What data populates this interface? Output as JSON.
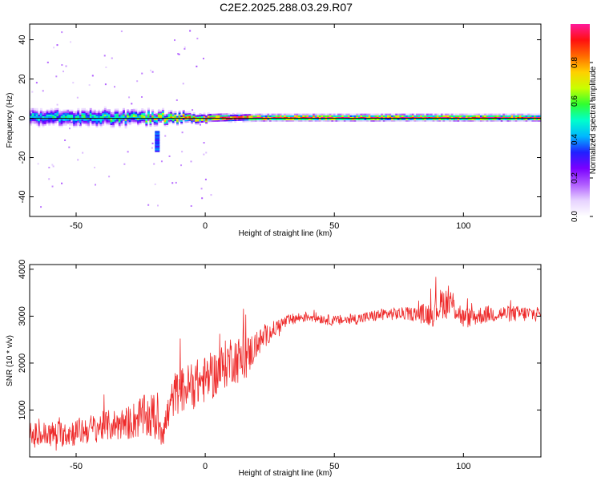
{
  "title": "C2E2.2025.288.03.29.R07",
  "chart_data": [
    {
      "type": "heatmap",
      "title": "C2E2.2025.288.03.29.R07",
      "xlabel": "Height of straight line (km)",
      "ylabel": "Frequency (Hz)",
      "xlim": [
        -68,
        130
      ],
      "ylim": [
        -50,
        48
      ],
      "xticks": [
        -50,
        0,
        50,
        100
      ],
      "yticks": [
        -40,
        -20,
        0,
        20,
        40
      ],
      "xtick_labels": [
        "-50",
        "0",
        "50",
        "100"
      ],
      "ytick_labels": [
        "-40",
        "-20",
        "0",
        "20",
        "40"
      ],
      "centerline_hz": 0,
      "colorbar": {
        "label": "Normalized spectral amplitude",
        "range": [
          0,
          1
        ],
        "ticks": [
          0.0,
          0.2,
          0.4,
          0.6,
          0.8
        ],
        "tick_labels": [
          "0.0",
          "0.2",
          "0.4",
          "0.6",
          "0.8"
        ],
        "colormap": [
          "#ffffff",
          "#e6d2ff",
          "#b05cff",
          "#7a00ff",
          "#2020ff",
          "#00b8ff",
          "#00ffcc",
          "#30ff30",
          "#c8ff00",
          "#ffd000",
          "#ff6a00",
          "#ff1010",
          "#ff1a9a"
        ]
      },
      "features": {
        "band_halfwidth_hz": {
          "x": [
            -68,
            -40,
            -20,
            0,
            20,
            130
          ],
          "values": [
            5,
            5,
            4,
            2.5,
            2,
            2
          ]
        },
        "core_amplitude": {
          "x": [
            -68,
            -30,
            -10,
            5,
            20,
            130
          ],
          "values": [
            0.45,
            0.55,
            0.75,
            0.9,
            0.95,
            0.97
          ]
        },
        "dip_feature": {
          "x": -18,
          "y": -12,
          "amplitude": 0.3
        }
      }
    },
    {
      "type": "line",
      "xlabel": "Height of straight line (km)",
      "ylabel": "SNR (10 * v/v)",
      "xlim": [
        -68,
        130
      ],
      "ylim": [
        0,
        4100
      ],
      "xticks": [
        -50,
        0,
        50,
        100
      ],
      "yticks": [
        1000,
        2000,
        3000,
        4000
      ],
      "xtick_labels": [
        "-50",
        "0",
        "50",
        "100"
      ],
      "ytick_labels": [
        "1000",
        "2000",
        "3000",
        "4000"
      ],
      "series": [
        {
          "name": "SNR",
          "color": "#ee2a2a",
          "x": [
            -68,
            -60,
            -50,
            -40,
            -30,
            -25,
            -20,
            -16,
            -12,
            -8,
            -4,
            0,
            5,
            10,
            15,
            20,
            25,
            30,
            35,
            40,
            50,
            60,
            70,
            80,
            88,
            92,
            96,
            100,
            110,
            120,
            130
          ],
          "values": [
            450,
            480,
            530,
            650,
            720,
            850,
            850,
            600,
            1350,
            1450,
            1550,
            1650,
            1800,
            2100,
            2050,
            2400,
            2650,
            2850,
            2950,
            3000,
            2900,
            2950,
            3050,
            3050,
            3050,
            3300,
            3250,
            2950,
            3050,
            3050,
            3050
          ],
          "noise_amplitude": [
            280,
            280,
            300,
            320,
            360,
            450,
            520,
            400,
            450,
            500,
            520,
            500,
            520,
            520,
            500,
            300,
            200,
            150,
            120,
            110,
            110,
            120,
            130,
            140,
            280,
            350,
            320,
            220,
            180,
            170,
            170
          ]
        }
      ]
    }
  ]
}
